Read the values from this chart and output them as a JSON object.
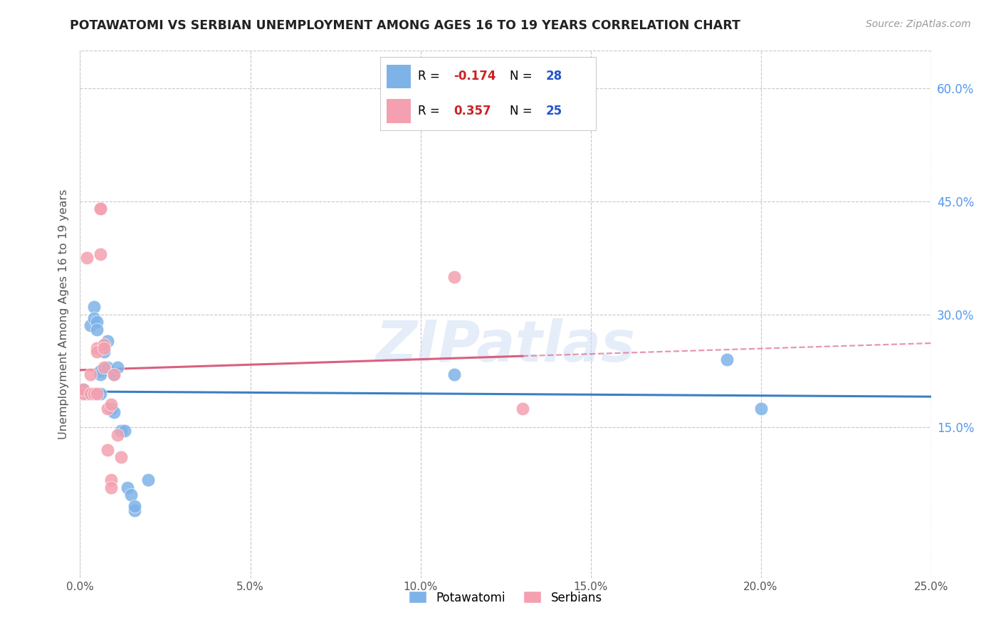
{
  "title": "POTAWATOMI VS SERBIAN UNEMPLOYMENT AMONG AGES 16 TO 19 YEARS CORRELATION CHART",
  "source": "Source: ZipAtlas.com",
  "ylabel": "Unemployment Among Ages 16 to 19 years",
  "xlim": [
    0.0,
    0.25
  ],
  "ylim": [
    -0.05,
    0.65
  ],
  "xticks": [
    0.0,
    0.05,
    0.1,
    0.15,
    0.2,
    0.25
  ],
  "yticks": [
    0.15,
    0.3,
    0.45,
    0.6
  ],
  "ytick_labels": [
    "15.0%",
    "30.0%",
    "45.0%",
    "60.0%"
  ],
  "xtick_labels": [
    "0.0%",
    "5.0%",
    "10.0%",
    "15.0%",
    "20.0%",
    "25.0%"
  ],
  "potawatomi_color": "#7EB3E8",
  "serbian_color": "#F4A0B0",
  "potawatomi_line_color": "#3B7FC4",
  "serbian_line_color": "#D96080",
  "background_color": "#ffffff",
  "grid_color": "#c8c8c8",
  "title_color": "#222222",
  "axis_label_color": "#555555",
  "right_axis_color": "#5599ee",
  "watermark": "ZIPatlas",
  "potawatomi_x": [
    0.001,
    0.002,
    0.003,
    0.004,
    0.004,
    0.005,
    0.005,
    0.006,
    0.006,
    0.006,
    0.007,
    0.007,
    0.008,
    0.008,
    0.009,
    0.01,
    0.01,
    0.011,
    0.012,
    0.013,
    0.014,
    0.015,
    0.016,
    0.016,
    0.02,
    0.11,
    0.19,
    0.2
  ],
  "potawatomi_y": [
    0.2,
    0.195,
    0.285,
    0.31,
    0.295,
    0.29,
    0.28,
    0.225,
    0.22,
    0.195,
    0.255,
    0.25,
    0.265,
    0.23,
    0.175,
    0.22,
    0.17,
    0.23,
    0.145,
    0.145,
    0.07,
    0.06,
    0.04,
    0.045,
    0.08,
    0.22,
    0.24,
    0.175
  ],
  "serbian_x": [
    0.001,
    0.001,
    0.002,
    0.003,
    0.003,
    0.004,
    0.005,
    0.005,
    0.005,
    0.006,
    0.006,
    0.006,
    0.007,
    0.007,
    0.007,
    0.008,
    0.008,
    0.009,
    0.009,
    0.009,
    0.01,
    0.011,
    0.012,
    0.11,
    0.13
  ],
  "serbian_y": [
    0.195,
    0.2,
    0.375,
    0.22,
    0.195,
    0.195,
    0.255,
    0.25,
    0.195,
    0.44,
    0.44,
    0.38,
    0.26,
    0.255,
    0.23,
    0.175,
    0.12,
    0.08,
    0.07,
    0.18,
    0.22,
    0.14,
    0.11,
    0.35,
    0.175
  ],
  "legend_R_color": "#cc2222",
  "legend_N_color": "#2255cc",
  "legend_label1": "Potawatomi",
  "legend_label2": "Serbians"
}
